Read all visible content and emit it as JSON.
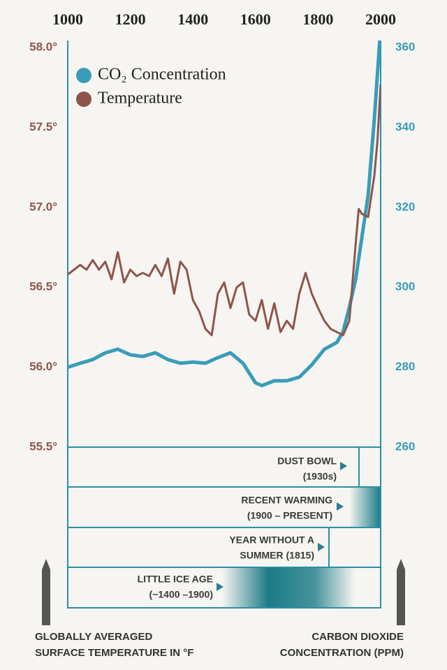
{
  "chart_data": {
    "type": "line",
    "xlim": [
      1000,
      2000
    ],
    "xticks": [
      1000,
      1200,
      1400,
      1600,
      1800,
      2000
    ],
    "ylim": [
      55.5,
      58
    ],
    "yticks": [
      {
        "value": 55.5,
        "label": "55.5°"
      },
      {
        "value": 56,
        "label": "56.0°"
      },
      {
        "value": 56.5,
        "label": "56.5°"
      },
      {
        "value": 57,
        "label": "57.0°"
      },
      {
        "value": 57.5,
        "label": "57.5°"
      },
      {
        "value": 58,
        "label": "58.0°"
      }
    ],
    "y2lim": [
      260,
      360
    ],
    "y2ticks": [
      260,
      280,
      300,
      320,
      340,
      360
    ],
    "y_label": [
      "GLOBALLY AVERAGED",
      "SURFACE TEMPERATURE IN °F"
    ],
    "y2_label": [
      "CARBON DIOXIDE",
      "CONCENTRATION (PPM)"
    ],
    "series": [
      {
        "name": "CO₂ Concentration",
        "color": "#3a9cb8",
        "axis": "y2",
        "x": [
          1000,
          1040,
          1080,
          1120,
          1160,
          1200,
          1240,
          1280,
          1320,
          1360,
          1400,
          1440,
          1480,
          1520,
          1560,
          1600,
          1620,
          1660,
          1700,
          1740,
          1780,
          1820,
          1860,
          1880,
          1900,
          1920,
          1940,
          1960,
          1980,
          2000
        ],
        "values": [
          280,
          281,
          281.9,
          283.6,
          284.5,
          283.1,
          282.7,
          283.6,
          281.9,
          281,
          281.3,
          281,
          282.4,
          283.6,
          281,
          276.1,
          275.4,
          276.6,
          276.6,
          277.5,
          280.6,
          284.5,
          286.2,
          288.9,
          295,
          302,
          312.5,
          323,
          342.2,
          365
        ]
      },
      {
        "name": "Temperature",
        "color": "#8e544b",
        "axis": "y",
        "x": [
          1000,
          1020,
          1040,
          1060,
          1080,
          1100,
          1120,
          1140,
          1160,
          1180,
          1200,
          1220,
          1240,
          1260,
          1280,
          1300,
          1320,
          1340,
          1360,
          1380,
          1400,
          1420,
          1440,
          1460,
          1480,
          1500,
          1520,
          1540,
          1560,
          1580,
          1600,
          1620,
          1640,
          1660,
          1680,
          1700,
          1720,
          1740,
          1760,
          1780,
          1800,
          1820,
          1840,
          1860,
          1880,
          1900,
          1920,
          1930,
          1940,
          1960,
          1980,
          1990,
          2000
        ],
        "values": [
          56.58,
          56.61,
          56.64,
          56.61,
          56.67,
          56.61,
          56.66,
          56.55,
          56.72,
          56.53,
          56.61,
          56.57,
          56.59,
          56.57,
          56.64,
          56.57,
          56.68,
          56.46,
          56.66,
          56.61,
          56.42,
          56.35,
          56.24,
          56.2,
          56.46,
          56.53,
          56.37,
          56.5,
          56.53,
          56.33,
          56.29,
          56.42,
          56.24,
          56.4,
          56.22,
          56.29,
          56.24,
          56.46,
          56.59,
          56.46,
          56.37,
          56.29,
          56.24,
          56.22,
          56.2,
          56.29,
          56.77,
          56.99,
          56.96,
          56.94,
          57.2,
          57.42,
          57.77
        ]
      }
    ],
    "annotations": [
      [
        "DUST BOWL",
        "(1930s)"
      ],
      [
        "RECENT WARMING",
        "(1900 – PRESENT)"
      ],
      [
        "YEAR WITHOUT A",
        "SUMMER (1815)"
      ],
      [
        "LITTLE ICE AGE",
        "(~1400 –1900)"
      ]
    ]
  }
}
